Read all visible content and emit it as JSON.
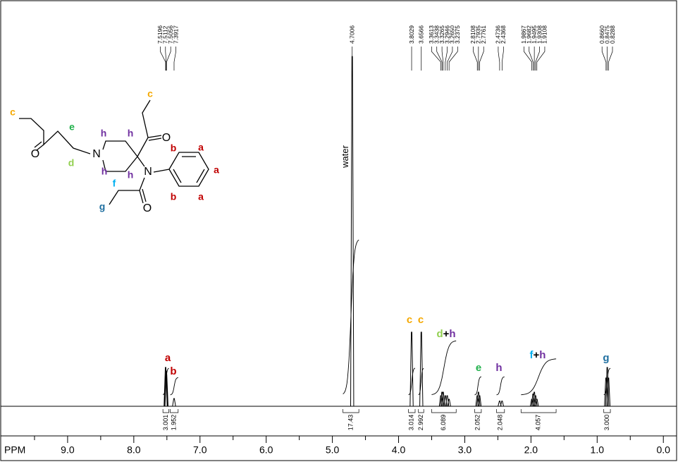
{
  "chart_data": {
    "type": "nmr",
    "x_label": "PPM",
    "xlim": [
      10.0,
      -0.2
    ],
    "xticks": [
      {
        "value": 9,
        "label": "9.0"
      },
      {
        "value": 8,
        "label": "8.0"
      },
      {
        "value": 7,
        "label": "7.0"
      },
      {
        "value": 6,
        "label": "6.0"
      },
      {
        "value": 5,
        "label": "5.0"
      },
      {
        "value": 4,
        "label": "4.0"
      },
      {
        "value": 3,
        "label": "3.0"
      },
      {
        "value": 2,
        "label": "2.0"
      },
      {
        "value": 1,
        "label": "1.0"
      },
      {
        "value": 0,
        "label": "0.0"
      }
    ],
    "xminor": [
      9.5,
      8.5,
      7.5,
      6.5,
      5.5,
      4.5,
      3.5,
      2.5,
      1.5,
      0.5
    ],
    "ylim": [
      0,
      115
    ],
    "color": "#000000",
    "peak_labels": [
      7.5196,
      7.5112,
      7.5056,
      7.3917,
      4.7006,
      3.8029,
      3.6566,
      3.3613,
      3.3438,
      3.3265,
      3.2946,
      {
        "value": 3.265,
        "label": "3.2650"
      },
      3.2375,
      2.8108,
      2.7935,
      2.7761,
      2.4736,
      2.4368,
      1.9867,
      1.9682,
      1.9495,
      1.9308,
      1.9108,
      {
        "value": 0.866,
        "label": "0.8660"
      },
      0.8475,
      0.8288
    ],
    "peak_heights": [
      11,
      10,
      9,
      2.2,
      99,
      21,
      21,
      3,
      4,
      4,
      3,
      3,
      2,
      3,
      4,
      3,
      1.5,
      1.5,
      2,
      3.5,
      4,
      3,
      2,
      8,
      11,
      8
    ],
    "integrals": {
      "ranges": [
        [
          7.56,
          7.47
        ],
        [
          7.45,
          7.33
        ],
        [
          4.84,
          4.6
        ],
        [
          3.85,
          3.75
        ],
        [
          3.7,
          3.62
        ],
        [
          3.5,
          3.13
        ],
        [
          2.85,
          2.75
        ],
        [
          2.52,
          2.4
        ],
        [
          2.15,
          1.62
        ],
        [
          0.9,
          0.8
        ]
      ],
      "values": [
        3.001,
        1.952,
        17.43,
        3.014,
        2.992,
        6.089,
        2.052,
        2.048,
        4.057,
        3.0
      ],
      "value_labels": [
        "3.001",
        "1.952",
        "17.43",
        "3.014",
        "2.992",
        "6.089",
        "2.052",
        "2.048",
        "4.057",
        "3.000"
      ]
    },
    "annotations": [
      {
        "parts": [
          {
            "text": "water",
            "color": "#000000"
          }
        ]
      },
      {
        "parts": [
          {
            "text": "a",
            "color": "#c00000"
          }
        ]
      },
      {
        "parts": [
          {
            "text": "b",
            "color": "#c00000"
          }
        ]
      },
      {
        "parts": [
          {
            "text": "c",
            "color": "#f5a800"
          }
        ]
      },
      {
        "parts": [
          {
            "text": "c",
            "color": "#f5a800"
          }
        ]
      },
      {
        "parts": [
          {
            "text": "d",
            "color": "#92d050"
          },
          {
            "text": "+",
            "color": "#000000"
          },
          {
            "text": "h",
            "color": "#7030a0"
          }
        ]
      },
      {
        "parts": [
          {
            "text": "e",
            "color": "#22b14c"
          }
        ]
      },
      {
        "parts": [
          {
            "text": "h",
            "color": "#7030a0"
          }
        ]
      },
      {
        "parts": [
          {
            "text": "f",
            "color": "#00b0f0"
          },
          {
            "text": "+",
            "color": "#000000"
          },
          {
            "text": "h",
            "color": "#7030a0"
          }
        ]
      },
      {
        "parts": [
          {
            "text": "g",
            "color": "#1f6fa0"
          }
        ]
      }
    ]
  },
  "structure": {
    "labels": [
      {
        "text": "c",
        "color": "#f5a800"
      },
      {
        "text": "O",
        "color": "#000000"
      },
      {
        "text": "e",
        "color": "#22b14c"
      },
      {
        "text": "d",
        "color": "#92d050"
      },
      {
        "text": "N",
        "color": "#000000"
      },
      {
        "text": "h",
        "color": "#7030a0"
      },
      {
        "text": "h",
        "color": "#7030a0"
      },
      {
        "text": "h",
        "color": "#7030a0"
      },
      {
        "text": "h",
        "color": "#7030a0"
      },
      {
        "text": "c",
        "color": "#f5a800"
      },
      {
        "text": "O",
        "color": "#000000"
      },
      {
        "text": "N",
        "color": "#000000"
      },
      {
        "text": "b",
        "color": "#c00000"
      },
      {
        "text": "a",
        "color": "#c00000"
      },
      {
        "text": "a",
        "color": "#c00000"
      },
      {
        "text": "a",
        "color": "#c00000"
      },
      {
        "text": "b",
        "color": "#c00000"
      },
      {
        "text": "f",
        "color": "#00b0f0"
      },
      {
        "text": "g",
        "color": "#1f6fa0"
      },
      {
        "text": "O",
        "color": "#000000"
      }
    ]
  }
}
